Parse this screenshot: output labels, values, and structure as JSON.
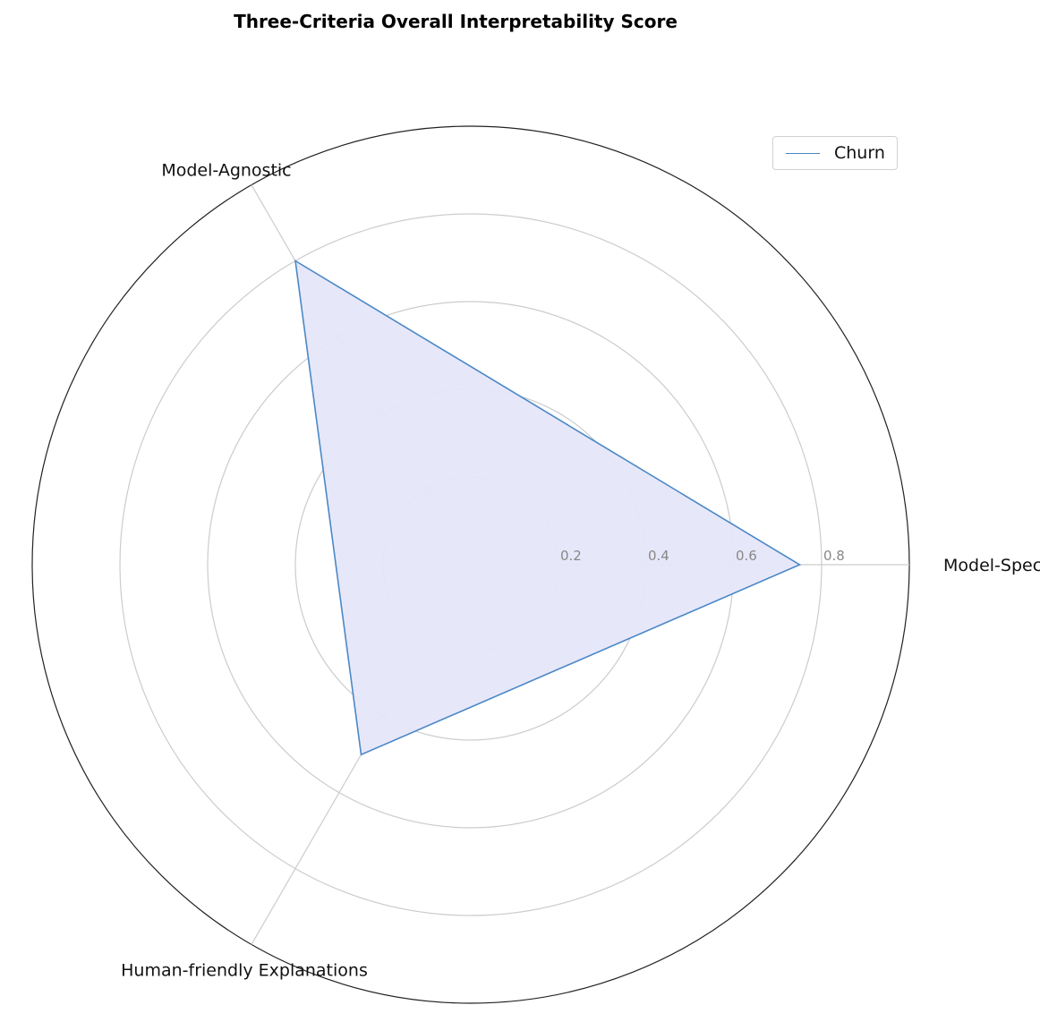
{
  "chart_data": {
    "type": "radar",
    "title": "Three-Criteria Overall Interpretability Score",
    "axes": [
      "Model-Specific",
      "Model-Agnostic",
      "Human-friendly Explanations"
    ],
    "radial_ticks": [
      "0.2",
      "0.4",
      "0.6",
      "0.8"
    ],
    "radial_tick_values": [
      0.2,
      0.4,
      0.6,
      0.8
    ],
    "rlim": [
      0,
      1.0
    ],
    "grid": true,
    "series": [
      {
        "name": "Churn",
        "values": [
          0.75,
          0.8,
          0.5
        ]
      }
    ],
    "legend": {
      "position": "top-right",
      "entries": [
        "Churn"
      ]
    },
    "colors": {
      "line": "#4a88c6",
      "fill": "#e6e6fa",
      "grid": "#cccccc",
      "outer": "#222222"
    }
  }
}
